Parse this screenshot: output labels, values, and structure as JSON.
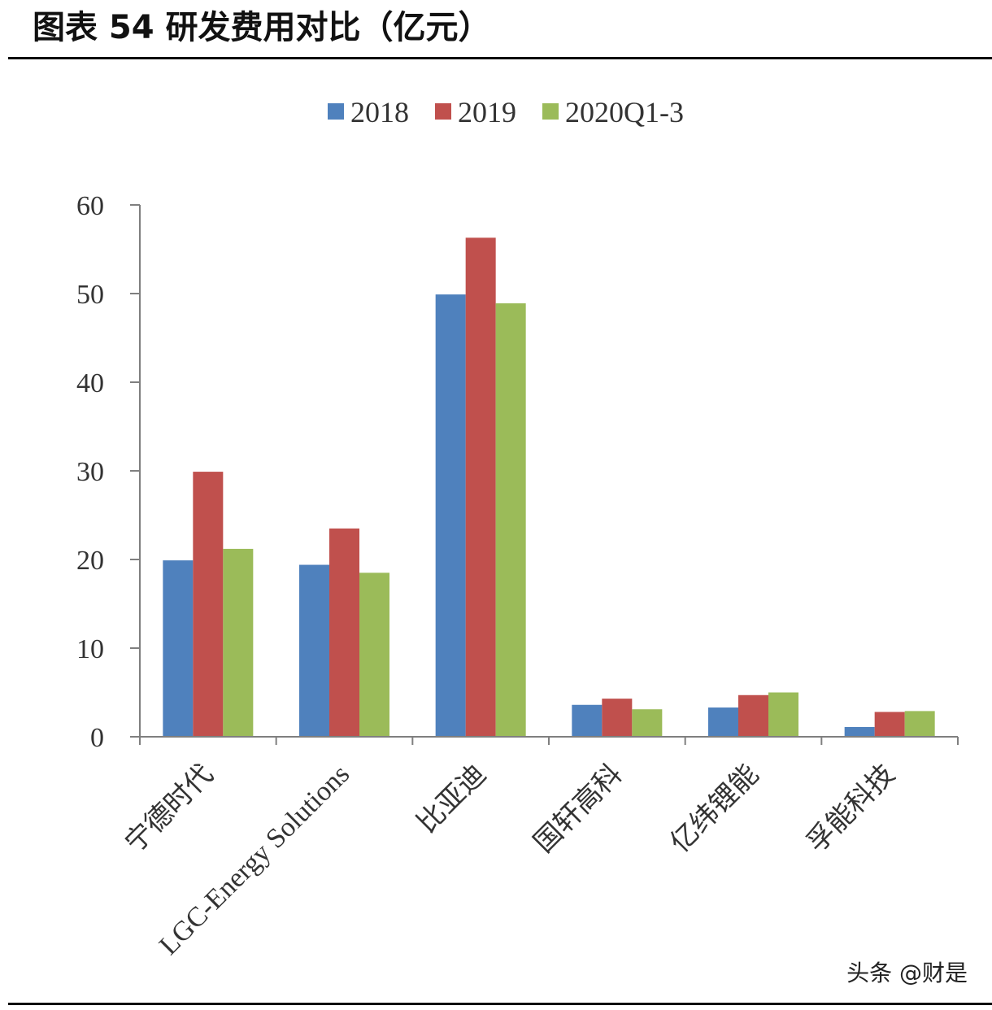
{
  "title": "图表 54  研发费用对比（亿元）",
  "watermark": "头条 @财是",
  "colors": {
    "2018": "#4F81BD",
    "2019": "#C0504D",
    "2020Q1-3": "#9BBB59"
  },
  "chart_data": {
    "type": "bar",
    "title": "",
    "xlabel": "",
    "ylabel": "",
    "ylim": [
      0,
      60
    ],
    "yticks": [
      0,
      10,
      20,
      30,
      40,
      50,
      60
    ],
    "legend_position": "top",
    "grid": false,
    "categories": [
      "宁德时代",
      "LGC-Energy Solutions",
      "比亚迪",
      "国轩高科",
      "亿纬锂能",
      "孚能科技"
    ],
    "series": [
      {
        "name": "2018",
        "values": [
          19.9,
          19.4,
          49.9,
          3.6,
          3.3,
          1.1
        ]
      },
      {
        "name": "2019",
        "values": [
          29.9,
          23.5,
          56.3,
          4.3,
          4.7,
          2.8
        ]
      },
      {
        "name": "2020Q1-3",
        "values": [
          21.2,
          18.5,
          48.9,
          3.1,
          5.0,
          2.9
        ]
      }
    ]
  }
}
